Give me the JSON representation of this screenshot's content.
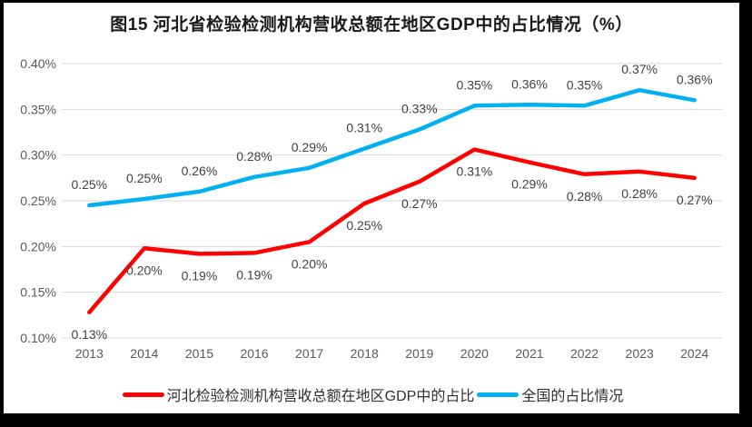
{
  "title": "图15 河北省检验检测机构营收总额在地区GDP中的占比情况（%）",
  "chart_data": {
    "type": "line",
    "title": "图15 河北省检验检测机构营收总额在地区GDP中的占比情况（%）",
    "categories": [
      "2013",
      "2014",
      "2015",
      "2016",
      "2017",
      "2018",
      "2019",
      "2020",
      "2021",
      "2022",
      "2023",
      "2024"
    ],
    "series": [
      {
        "name": "河北检验检测机构营收总额在地区GDP中的占比",
        "color": "#FF0000",
        "values": [
          0.13,
          0.2,
          0.19,
          0.19,
          0.2,
          0.25,
          0.27,
          0.31,
          0.29,
          0.28,
          0.28,
          0.27
        ],
        "labels": [
          "0.13%",
          "0.20%",
          "0.19%",
          "0.19%",
          "0.20%",
          "0.25%",
          "0.27%",
          "0.31%",
          "0.29%",
          "0.28%",
          "0.28%",
          "0.27%"
        ],
        "plot_values": [
          0.128,
          0.198,
          0.192,
          0.193,
          0.205,
          0.247,
          0.271,
          0.306,
          0.292,
          0.279,
          0.282,
          0.275
        ],
        "label_position": "below"
      },
      {
        "name": "全国的占比情况",
        "color": "#00B0F0",
        "values": [
          0.25,
          0.25,
          0.26,
          0.28,
          0.29,
          0.31,
          0.33,
          0.35,
          0.36,
          0.35,
          0.37,
          0.36
        ],
        "labels": [
          "0.25%",
          "0.25%",
          "0.26%",
          "0.28%",
          "0.29%",
          "0.31%",
          "0.33%",
          "0.35%",
          "0.36%",
          "0.35%",
          "0.37%",
          "0.36%"
        ],
        "plot_values": [
          0.245,
          0.252,
          0.26,
          0.276,
          0.286,
          0.307,
          0.328,
          0.354,
          0.355,
          0.354,
          0.371,
          0.36
        ],
        "label_position": "above"
      }
    ],
    "unit": "%",
    "xlabel": "",
    "ylabel": "",
    "ylim": [
      0.1,
      0.4
    ],
    "y_tick_values": [
      0.4,
      0.35,
      0.3,
      0.25,
      0.2,
      0.15,
      0.1
    ],
    "y_ticks": [
      "0.40%",
      "0.35%",
      "0.30%",
      "0.25%",
      "0.20%",
      "0.15%",
      "0.10%"
    ],
    "grid": true,
    "legend_position": "bottom"
  },
  "legend": {
    "items": [
      {
        "label": "河北检验检测机构营收总额在地区GDP中的占比",
        "color": "#FF0000"
      },
      {
        "label": "全国的占比情况",
        "color": "#00B0F0"
      }
    ]
  },
  "colors": {
    "hebei_line": "#FF0000",
    "national_line": "#00B0F0",
    "gridline": "#D9D9D9",
    "axis_text": "#595959",
    "data_label_text": "#3F3F3F",
    "background": "#FFFFFF",
    "frame": "#000000"
  }
}
